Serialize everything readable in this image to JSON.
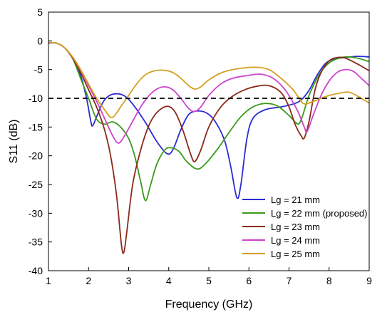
{
  "chart_data": {
    "type": "line",
    "title": "",
    "xlabel": "Frequency (GHz)",
    "ylabel": "S11 (dB)",
    "xlim": [
      1,
      9
    ],
    "ylim": [
      -40,
      5
    ],
    "xticks": [
      1,
      2,
      3,
      4,
      5,
      6,
      7,
      8,
      9
    ],
    "yticks": [
      5,
      0,
      -5,
      -10,
      -15,
      -20,
      -25,
      -30,
      -35,
      -40
    ],
    "grid": false,
    "legend_position": "bottom-right",
    "reference_line": {
      "y": -10,
      "style": "dashed",
      "color": "#000000"
    },
    "series": [
      {
        "name": "Lg = 21 mm",
        "color": "#2b2bd6",
        "points": [
          [
            1.0,
            -0.4
          ],
          [
            1.2,
            -0.4
          ],
          [
            1.4,
            -1.2
          ],
          [
            1.6,
            -3.0
          ],
          [
            1.8,
            -6.0
          ],
          [
            1.95,
            -10.0
          ],
          [
            2.05,
            -13.8
          ],
          [
            2.1,
            -14.8
          ],
          [
            2.2,
            -13.2
          ],
          [
            2.35,
            -10.8
          ],
          [
            2.5,
            -9.6
          ],
          [
            2.7,
            -9.2
          ],
          [
            2.9,
            -9.6
          ],
          [
            3.1,
            -11.0
          ],
          [
            3.4,
            -14.0
          ],
          [
            3.7,
            -17.5
          ],
          [
            3.95,
            -19.6
          ],
          [
            4.1,
            -19.0
          ],
          [
            4.3,
            -15.5
          ],
          [
            4.5,
            -12.8
          ],
          [
            4.75,
            -12.2
          ],
          [
            5.0,
            -12.8
          ],
          [
            5.2,
            -14.5
          ],
          [
            5.4,
            -17.5
          ],
          [
            5.55,
            -22.0
          ],
          [
            5.7,
            -27.3
          ],
          [
            5.8,
            -25.0
          ],
          [
            5.95,
            -17.0
          ],
          [
            6.1,
            -13.5
          ],
          [
            6.4,
            -12.0
          ],
          [
            6.8,
            -11.5
          ],
          [
            7.1,
            -11.0
          ],
          [
            7.3,
            -10.3
          ],
          [
            7.5,
            -8.6
          ],
          [
            7.7,
            -6.0
          ],
          [
            7.9,
            -4.0
          ],
          [
            8.1,
            -3.2
          ],
          [
            8.4,
            -2.9
          ],
          [
            8.7,
            -2.7
          ],
          [
            9.0,
            -2.8
          ]
        ]
      },
      {
        "name": "Lg = 22 mm (proposed)",
        "color": "#3a9a1a",
        "points": [
          [
            1.0,
            -0.3
          ],
          [
            1.2,
            -0.4
          ],
          [
            1.4,
            -1.2
          ],
          [
            1.6,
            -3.0
          ],
          [
            1.8,
            -6.5
          ],
          [
            2.0,
            -10.0
          ],
          [
            2.2,
            -13.6
          ],
          [
            2.4,
            -14.5
          ],
          [
            2.6,
            -14.1
          ],
          [
            2.8,
            -15.0
          ],
          [
            3.0,
            -17.0
          ],
          [
            3.15,
            -20.0
          ],
          [
            3.3,
            -24.5
          ],
          [
            3.42,
            -27.8
          ],
          [
            3.55,
            -25.0
          ],
          [
            3.7,
            -21.5
          ],
          [
            3.9,
            -19.0
          ],
          [
            4.05,
            -18.6
          ],
          [
            4.25,
            -19.2
          ],
          [
            4.45,
            -21.0
          ],
          [
            4.7,
            -22.3
          ],
          [
            4.9,
            -21.5
          ],
          [
            5.2,
            -19.0
          ],
          [
            5.5,
            -16.0
          ],
          [
            5.8,
            -13.2
          ],
          [
            6.1,
            -11.5
          ],
          [
            6.4,
            -10.9
          ],
          [
            6.7,
            -11.3
          ],
          [
            7.0,
            -13.0
          ],
          [
            7.2,
            -14.4
          ],
          [
            7.3,
            -13.8
          ],
          [
            7.5,
            -9.5
          ],
          [
            7.7,
            -6.5
          ],
          [
            7.9,
            -4.5
          ],
          [
            8.1,
            -3.4
          ],
          [
            8.4,
            -2.8
          ],
          [
            8.7,
            -3.0
          ],
          [
            9.0,
            -3.6
          ]
        ]
      },
      {
        "name": "Lg = 23 mm",
        "color": "#8b2a1a",
        "points": [
          [
            1.0,
            -0.3
          ],
          [
            1.2,
            -0.4
          ],
          [
            1.4,
            -1.2
          ],
          [
            1.6,
            -3.0
          ],
          [
            1.8,
            -5.5
          ],
          [
            2.0,
            -8.5
          ],
          [
            2.2,
            -11.5
          ],
          [
            2.4,
            -15.5
          ],
          [
            2.55,
            -20.0
          ],
          [
            2.7,
            -27.0
          ],
          [
            2.82,
            -35.5
          ],
          [
            2.88,
            -36.8
          ],
          [
            2.95,
            -33.5
          ],
          [
            3.1,
            -25.0
          ],
          [
            3.3,
            -19.0
          ],
          [
            3.5,
            -14.8
          ],
          [
            3.7,
            -12.5
          ],
          [
            3.95,
            -11.4
          ],
          [
            4.15,
            -12.3
          ],
          [
            4.35,
            -15.5
          ],
          [
            4.55,
            -19.8
          ],
          [
            4.65,
            -21.0
          ],
          [
            4.8,
            -19.0
          ],
          [
            5.0,
            -15.0
          ],
          [
            5.3,
            -11.5
          ],
          [
            5.6,
            -9.6
          ],
          [
            5.9,
            -8.5
          ],
          [
            6.2,
            -7.9
          ],
          [
            6.5,
            -7.8
          ],
          [
            6.8,
            -9.0
          ],
          [
            7.0,
            -11.5
          ],
          [
            7.15,
            -14.5
          ],
          [
            7.3,
            -16.5
          ],
          [
            7.38,
            -16.9
          ],
          [
            7.5,
            -14.0
          ],
          [
            7.65,
            -8.5
          ],
          [
            7.8,
            -5.5
          ],
          [
            8.0,
            -3.5
          ],
          [
            8.2,
            -2.9
          ],
          [
            8.4,
            -3.0
          ],
          [
            8.7,
            -4.0
          ],
          [
            9.0,
            -5.2
          ]
        ]
      },
      {
        "name": "Lg = 24 mm",
        "color": "#cc44cc",
        "points": [
          [
            1.0,
            -0.3
          ],
          [
            1.2,
            -0.4
          ],
          [
            1.4,
            -1.2
          ],
          [
            1.6,
            -2.8
          ],
          [
            1.8,
            -5.0
          ],
          [
            2.0,
            -7.8
          ],
          [
            2.2,
            -10.5
          ],
          [
            2.4,
            -13.5
          ],
          [
            2.6,
            -16.5
          ],
          [
            2.75,
            -17.8
          ],
          [
            2.9,
            -16.5
          ],
          [
            3.1,
            -14.0
          ],
          [
            3.3,
            -11.5
          ],
          [
            3.5,
            -9.6
          ],
          [
            3.7,
            -8.4
          ],
          [
            3.9,
            -8.0
          ],
          [
            4.1,
            -8.5
          ],
          [
            4.3,
            -10.0
          ],
          [
            4.5,
            -11.8
          ],
          [
            4.65,
            -12.3
          ],
          [
            4.8,
            -11.5
          ],
          [
            5.0,
            -9.5
          ],
          [
            5.3,
            -7.5
          ],
          [
            5.6,
            -6.5
          ],
          [
            6.0,
            -6.0
          ],
          [
            6.3,
            -5.8
          ],
          [
            6.6,
            -6.5
          ],
          [
            6.9,
            -8.5
          ],
          [
            7.2,
            -12.0
          ],
          [
            7.38,
            -15.0
          ],
          [
            7.45,
            -15.8
          ],
          [
            7.6,
            -13.0
          ],
          [
            7.8,
            -9.5
          ],
          [
            8.0,
            -7.0
          ],
          [
            8.2,
            -5.5
          ],
          [
            8.4,
            -5.0
          ],
          [
            8.6,
            -5.3
          ],
          [
            8.8,
            -6.5
          ],
          [
            9.0,
            -7.8
          ]
        ]
      },
      {
        "name": "Lg = 25 mm",
        "color": "#d4a020",
        "points": [
          [
            1.0,
            -0.3
          ],
          [
            1.2,
            -0.4
          ],
          [
            1.4,
            -1.2
          ],
          [
            1.6,
            -2.8
          ],
          [
            1.8,
            -5.0
          ],
          [
            2.0,
            -7.5
          ],
          [
            2.2,
            -10.0
          ],
          [
            2.4,
            -12.0
          ],
          [
            2.55,
            -13.3
          ],
          [
            2.65,
            -13.0
          ],
          [
            2.8,
            -11.5
          ],
          [
            3.0,
            -9.5
          ],
          [
            3.2,
            -7.5
          ],
          [
            3.4,
            -6.0
          ],
          [
            3.6,
            -5.3
          ],
          [
            3.85,
            -5.1
          ],
          [
            4.1,
            -5.5
          ],
          [
            4.3,
            -6.5
          ],
          [
            4.5,
            -7.8
          ],
          [
            4.65,
            -8.4
          ],
          [
            4.8,
            -8.0
          ],
          [
            5.0,
            -6.8
          ],
          [
            5.3,
            -5.6
          ],
          [
            5.6,
            -5.0
          ],
          [
            5.9,
            -4.7
          ],
          [
            6.2,
            -4.6
          ],
          [
            6.5,
            -5.0
          ],
          [
            6.8,
            -6.5
          ],
          [
            7.1,
            -8.5
          ],
          [
            7.3,
            -10.5
          ],
          [
            7.4,
            -11.0
          ],
          [
            7.55,
            -10.7
          ],
          [
            7.8,
            -10.0
          ],
          [
            8.0,
            -9.5
          ],
          [
            8.2,
            -9.2
          ],
          [
            8.45,
            -8.9
          ],
          [
            8.6,
            -9.2
          ],
          [
            8.8,
            -10.0
          ],
          [
            9.0,
            -10.8
          ]
        ]
      }
    ]
  }
}
